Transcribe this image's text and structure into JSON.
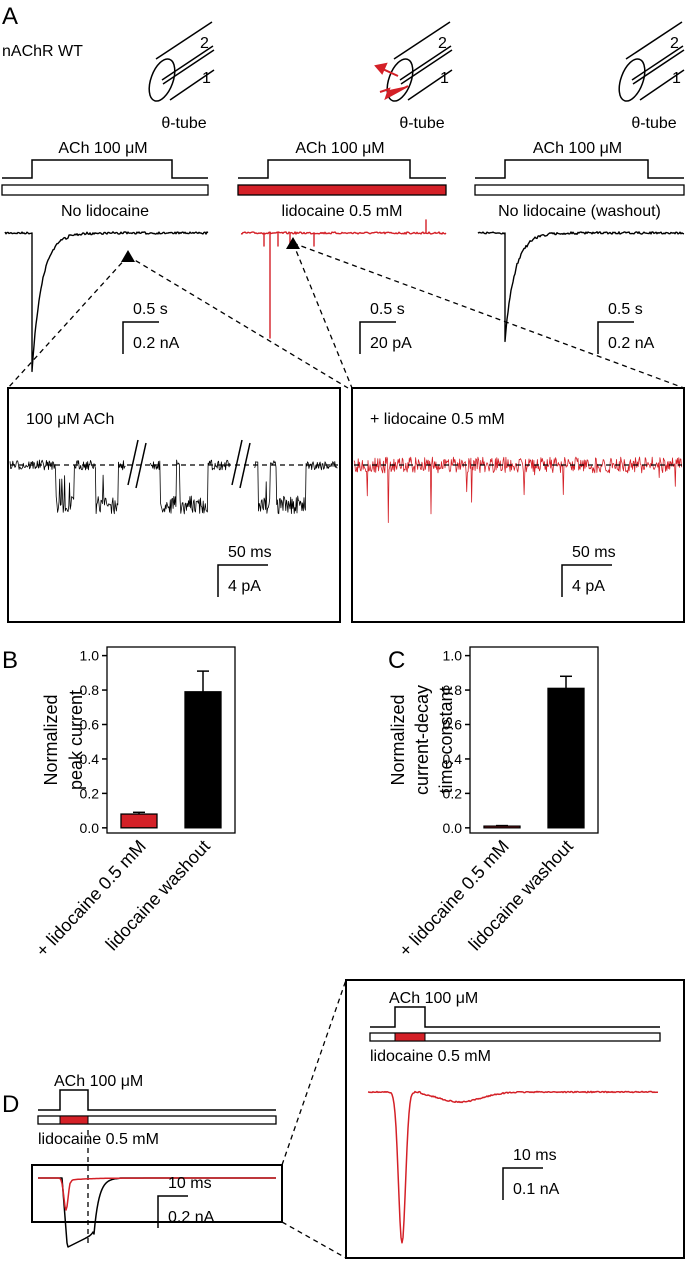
{
  "panel_a": {
    "label": "A",
    "construct": "nAChR WT",
    "tube_label": "θ-tube",
    "tube_ports": [
      "2",
      "1"
    ],
    "conditions": [
      {
        "agonist": "ACh 100 μM",
        "solution": "No lidocaine",
        "scale_time": "0.5 s",
        "scale_current": "0.2 nA"
      },
      {
        "agonist": "ACh 100 μM",
        "solution": "lidocaine 0.5 mM",
        "scale_time": "0.5 s",
        "scale_current": "20 pA"
      },
      {
        "agonist": "ACh 100 μM",
        "solution": "No lidocaine (washout)",
        "scale_time": "0.5 s",
        "scale_current": "0.2 nA"
      }
    ],
    "insets": [
      {
        "title": "100 μM ACh",
        "scale_time": "50 ms",
        "scale_current": "4 pA"
      },
      {
        "title": "+ lidocaine 0.5 mM",
        "scale_time": "50 ms",
        "scale_current": "4 pA"
      }
    ]
  },
  "chart_data": [
    {
      "type": "bar",
      "label": "B",
      "y_label": [
        "Normalized",
        "peak current"
      ],
      "categories": [
        "+ lidocaine 0.5 mM",
        "lidocaine washout"
      ],
      "values": [
        0.08,
        0.79
      ],
      "errors": [
        0.01,
        0.12
      ],
      "colors": [
        "#d42027",
        "#000000"
      ],
      "ylim": [
        -0.03,
        1.05
      ],
      "yticks": [
        {
          "value": 0,
          "label": "0.0"
        },
        0.2,
        0.4,
        0.6,
        0.8,
        {
          "value": 1,
          "label": "1.0"
        }
      ]
    },
    {
      "type": "bar",
      "label": "C",
      "y_label": [
        "Normalized",
        "current-decay",
        "time constant"
      ],
      "categories": [
        "+ lidocaine 0.5 mM",
        "lidocaine washout"
      ],
      "values": [
        0.01,
        0.81
      ],
      "errors": [
        0.003,
        0.07
      ],
      "colors": [
        "#d42027",
        "#000000"
      ],
      "ylim": [
        -0.03,
        1.05
      ],
      "yticks": [
        {
          "value": 0,
          "label": "0.0"
        },
        0.2,
        0.4,
        0.6,
        0.8,
        {
          "value": 1,
          "label": "1.0"
        }
      ]
    }
  ],
  "panel_d": {
    "label": "D",
    "agonist": "ACh 100 μM",
    "solution": "lidocaine 0.5 mM",
    "scale_time": "10 ms",
    "scale_current": "0.2 nA",
    "inset": {
      "agonist": "ACh 100 μM",
      "solution": "lidocaine 0.5 mM",
      "scale_time": "10 ms",
      "scale_current": "0.1 nA"
    }
  }
}
